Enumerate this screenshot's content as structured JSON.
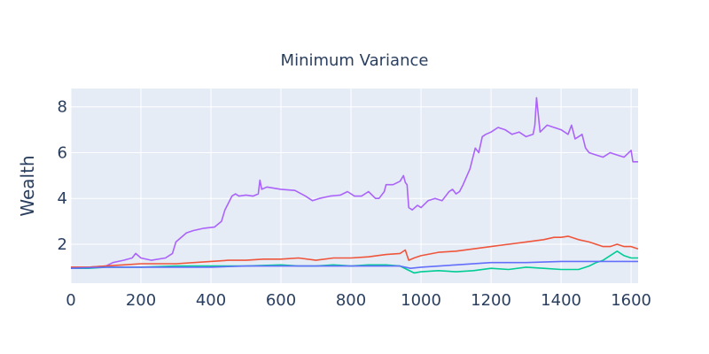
{
  "chart_data": {
    "type": "line",
    "title": "Minimum Variance",
    "xlabel": "",
    "ylabel": "Wealth",
    "xlim": [
      0,
      1620
    ],
    "ylim": [
      0.3,
      8.8
    ],
    "x_ticks": [
      0,
      200,
      400,
      600,
      800,
      1000,
      1200,
      1400,
      1600
    ],
    "y_ticks": [
      2,
      4,
      6,
      8
    ],
    "grid": true,
    "legend": "none",
    "background": "#e5ecf6",
    "series": [
      {
        "color": "#ab63fa",
        "x": [
          0,
          50,
          100,
          120,
          150,
          175,
          185,
          200,
          230,
          270,
          290,
          300,
          330,
          350,
          380,
          410,
          430,
          440,
          450,
          460,
          470,
          480,
          500,
          520,
          535,
          540,
          545,
          560,
          600,
          640,
          670,
          690,
          710,
          740,
          770,
          790,
          810,
          830,
          850,
          870,
          880,
          895,
          900,
          920,
          940,
          950,
          955,
          960,
          965,
          975,
          990,
          1000,
          1020,
          1040,
          1060,
          1080,
          1090,
          1100,
          1110,
          1120,
          1140,
          1145,
          1155,
          1165,
          1175,
          1185,
          1200,
          1220,
          1240,
          1260,
          1280,
          1300,
          1320,
          1325,
          1330,
          1340,
          1360,
          1380,
          1400,
          1420,
          1430,
          1440,
          1450,
          1460,
          1470,
          1480,
          1500,
          1520,
          1540,
          1560,
          1580,
          1600,
          1605,
          1620
        ],
        "values": [
          1.0,
          1.0,
          1.05,
          1.2,
          1.3,
          1.4,
          1.6,
          1.4,
          1.3,
          1.4,
          1.6,
          2.1,
          2.5,
          2.6,
          2.7,
          2.75,
          3.0,
          3.5,
          3.8,
          4.1,
          4.2,
          4.1,
          4.15,
          4.1,
          4.2,
          4.8,
          4.4,
          4.5,
          4.4,
          4.35,
          4.1,
          3.9,
          4.0,
          4.1,
          4.15,
          4.3,
          4.1,
          4.1,
          4.3,
          4.0,
          4.0,
          4.3,
          4.6,
          4.6,
          4.75,
          5.0,
          4.7,
          4.6,
          3.6,
          3.5,
          3.7,
          3.6,
          3.9,
          4.0,
          3.9,
          4.3,
          4.4,
          4.2,
          4.3,
          4.6,
          5.3,
          5.6,
          6.2,
          6.0,
          6.7,
          6.8,
          6.9,
          7.1,
          7.0,
          6.8,
          6.9,
          6.7,
          6.8,
          7.2,
          8.4,
          6.9,
          7.2,
          7.1,
          7.0,
          6.8,
          7.2,
          6.6,
          6.7,
          6.8,
          6.2,
          6.0,
          5.9,
          5.8,
          6.0,
          5.9,
          5.8,
          6.1,
          5.6,
          5.6
        ]
      },
      {
        "color": "#ef553b",
        "x": [
          0,
          50,
          100,
          150,
          200,
          250,
          300,
          400,
          450,
          500,
          550,
          600,
          650,
          700,
          750,
          800,
          850,
          900,
          940,
          955,
          965,
          980,
          1000,
          1050,
          1100,
          1150,
          1200,
          1250,
          1300,
          1350,
          1380,
          1400,
          1420,
          1450,
          1480,
          1500,
          1520,
          1540,
          1560,
          1580,
          1600,
          1620
        ],
        "values": [
          1.0,
          1.0,
          1.05,
          1.1,
          1.15,
          1.15,
          1.15,
          1.25,
          1.3,
          1.3,
          1.35,
          1.35,
          1.4,
          1.3,
          1.4,
          1.4,
          1.45,
          1.55,
          1.6,
          1.75,
          1.3,
          1.4,
          1.5,
          1.65,
          1.7,
          1.8,
          1.9,
          2.0,
          2.1,
          2.2,
          2.3,
          2.3,
          2.35,
          2.2,
          2.1,
          2.0,
          1.9,
          1.9,
          2.0,
          1.9,
          1.9,
          1.8
        ]
      },
      {
        "color": "#00cc96",
        "x": [
          0,
          50,
          100,
          200,
          300,
          400,
          500,
          600,
          650,
          700,
          750,
          800,
          850,
          900,
          940,
          960,
          980,
          1000,
          1050,
          1100,
          1150,
          1200,
          1250,
          1300,
          1350,
          1400,
          1450,
          1480,
          1500,
          1520,
          1540,
          1560,
          1580,
          1600,
          1620
        ],
        "values": [
          0.95,
          0.95,
          1.0,
          1.0,
          1.05,
          1.05,
          1.05,
          1.1,
          1.05,
          1.05,
          1.1,
          1.05,
          1.1,
          1.1,
          1.05,
          0.9,
          0.75,
          0.8,
          0.85,
          0.8,
          0.85,
          0.95,
          0.9,
          1.0,
          0.95,
          0.9,
          0.9,
          1.05,
          1.2,
          1.3,
          1.5,
          1.7,
          1.5,
          1.4,
          1.4
        ]
      },
      {
        "color": "#636efa",
        "x": [
          0,
          100,
          200,
          300,
          400,
          500,
          600,
          700,
          800,
          900,
          940,
          970,
          1000,
          1100,
          1200,
          1300,
          1400,
          1500,
          1600,
          1620
        ],
        "values": [
          0.95,
          1.0,
          1.0,
          1.0,
          1.0,
          1.05,
          1.05,
          1.05,
          1.05,
          1.05,
          1.05,
          0.95,
          1.0,
          1.1,
          1.2,
          1.2,
          1.25,
          1.25,
          1.25,
          1.25
        ]
      }
    ]
  }
}
